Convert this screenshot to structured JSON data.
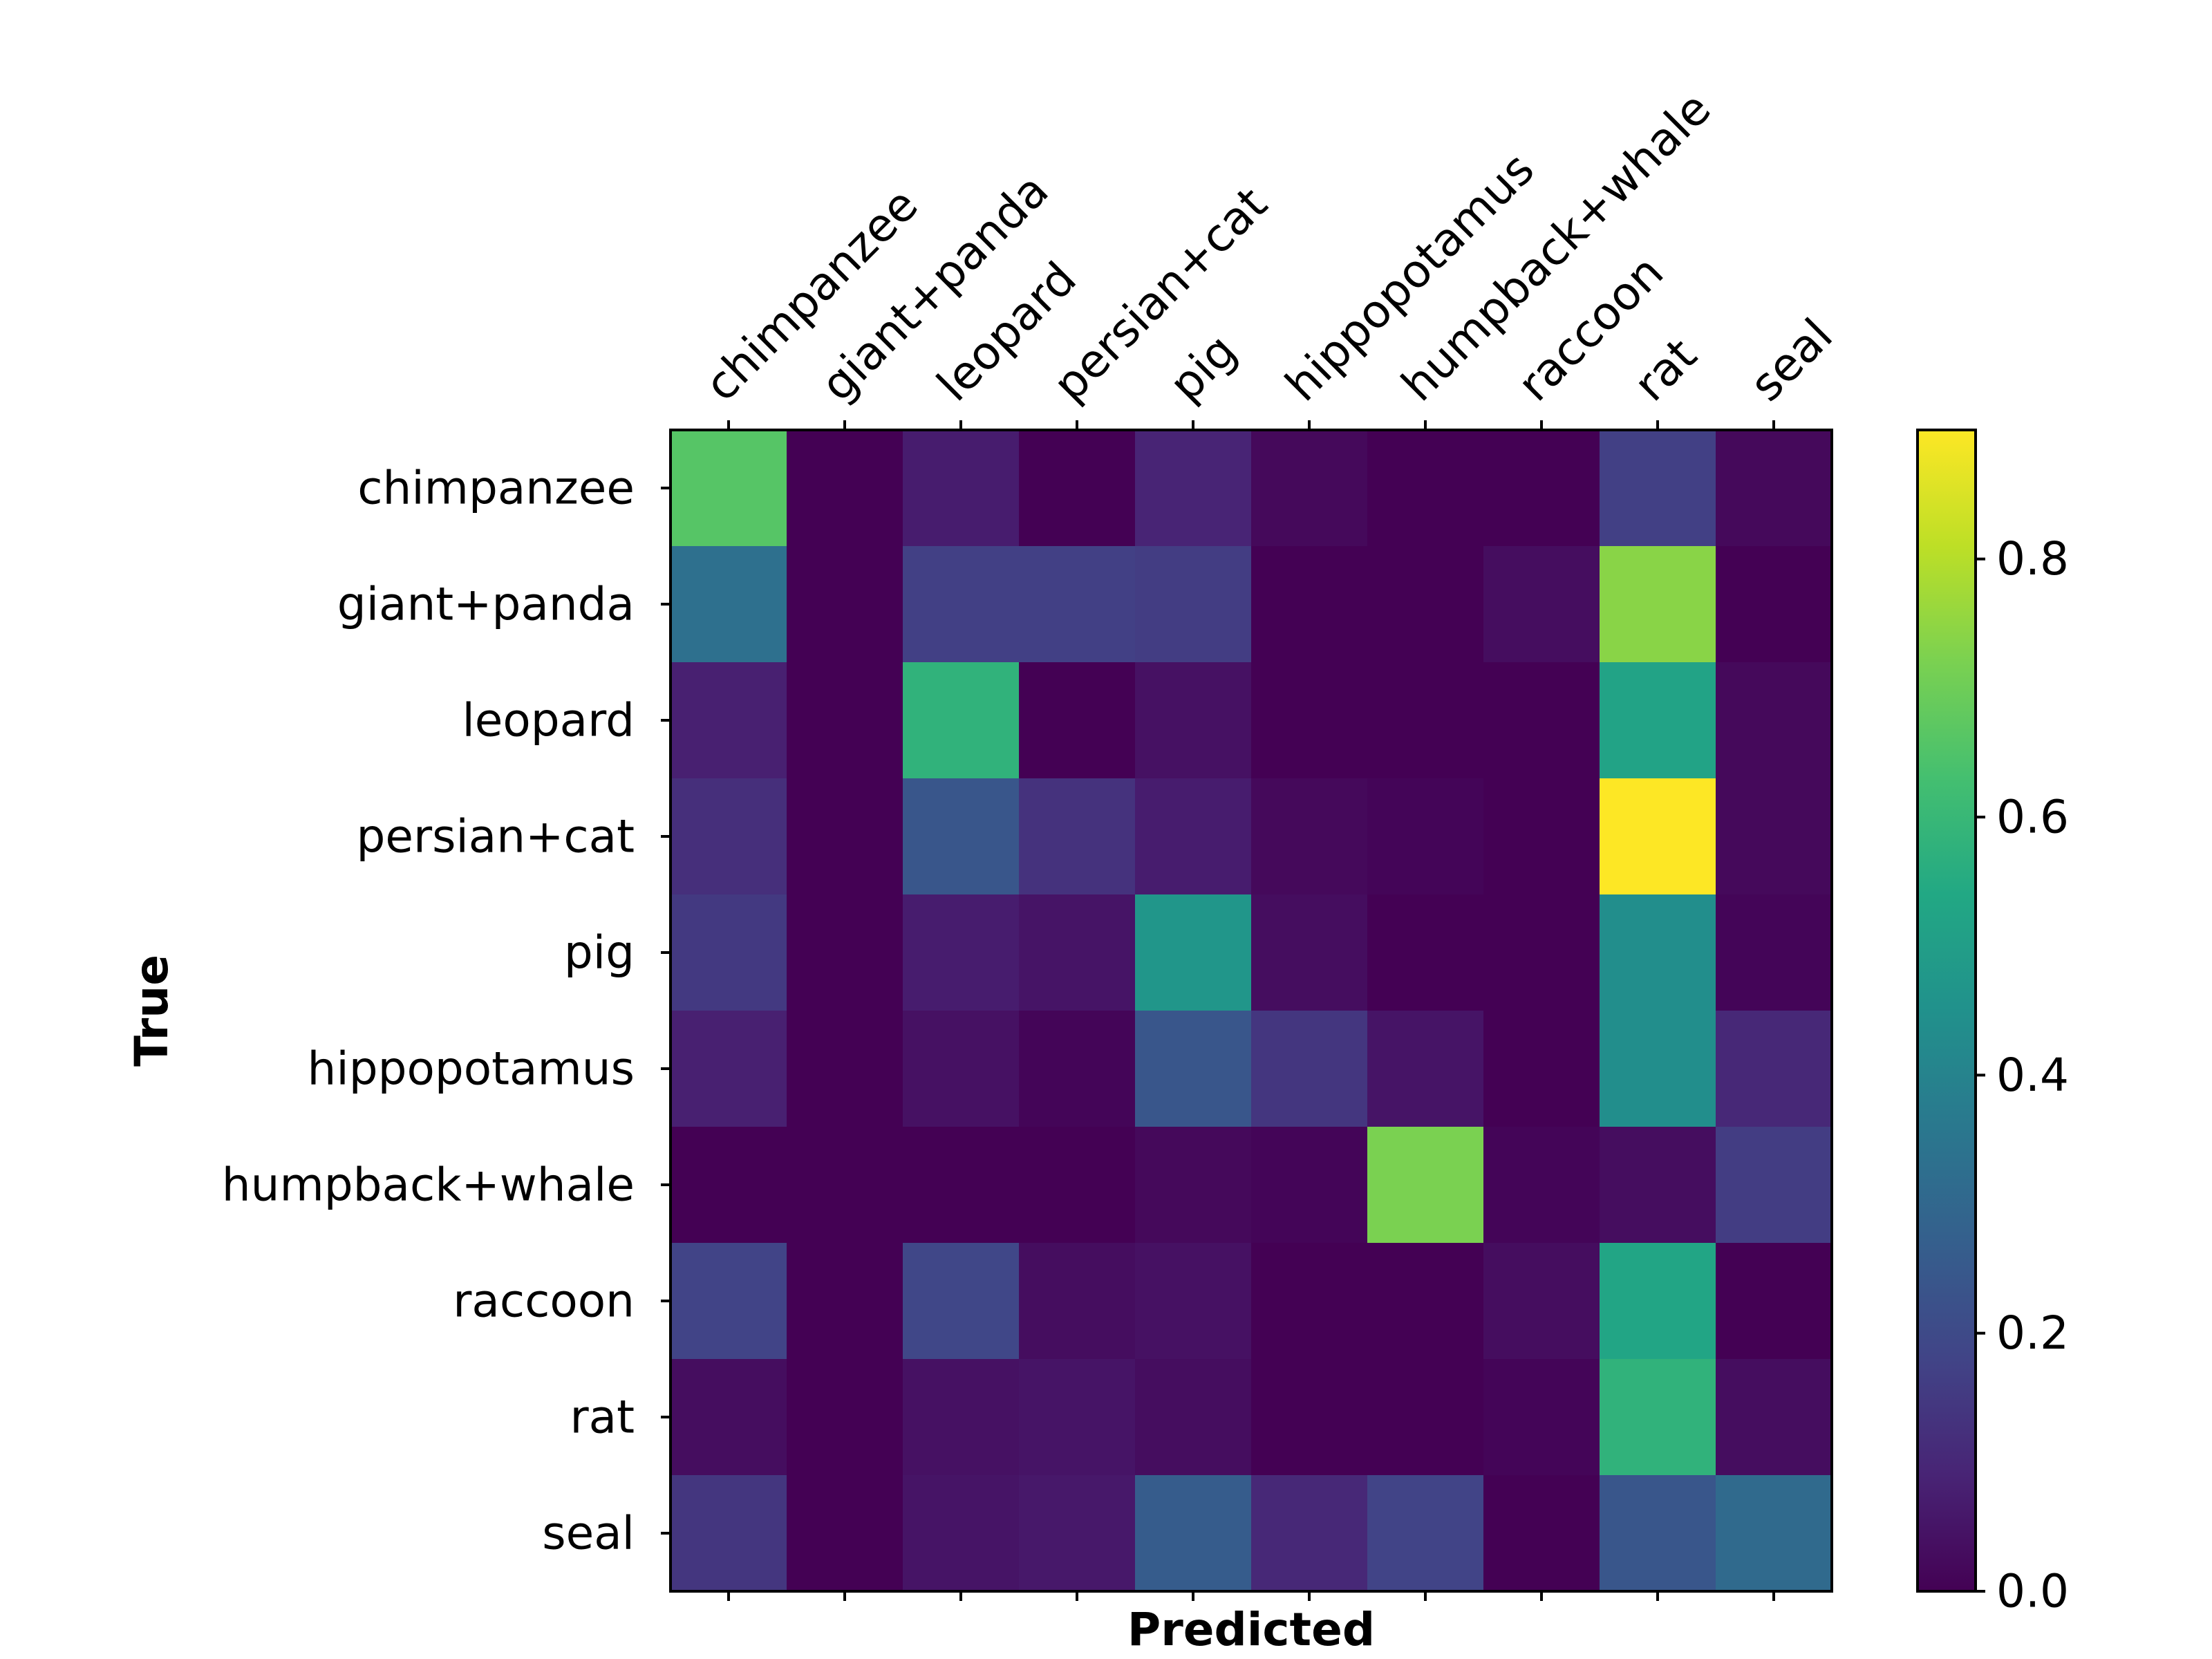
{
  "chart_data": {
    "type": "heatmap",
    "title": "",
    "xlabel": "Predicted",
    "ylabel": "True",
    "x_categories": [
      "chimpanzee",
      "giant+panda",
      "leopard",
      "persian+cat",
      "pig",
      "hippopotamus",
      "humpback+whale",
      "raccoon",
      "rat",
      "seal"
    ],
    "y_categories": [
      "chimpanzee",
      "giant+panda",
      "leopard",
      "persian+cat",
      "pig",
      "hippopotamus",
      "humpback+whale",
      "raccoon",
      "rat",
      "seal"
    ],
    "values": [
      [
        0.66,
        0.0,
        0.07,
        0.0,
        0.09,
        0.02,
        0.0,
        0.0,
        0.17,
        0.02
      ],
      [
        0.33,
        0.0,
        0.17,
        0.17,
        0.16,
        0.0,
        0.0,
        0.03,
        0.74,
        0.0
      ],
      [
        0.08,
        0.0,
        0.58,
        0.0,
        0.04,
        0.0,
        0.0,
        0.0,
        0.52,
        0.02
      ],
      [
        0.12,
        0.0,
        0.24,
        0.13,
        0.07,
        0.02,
        0.01,
        0.0,
        0.9,
        0.02
      ],
      [
        0.15,
        0.0,
        0.07,
        0.05,
        0.47,
        0.03,
        0.0,
        0.0,
        0.44,
        0.01
      ],
      [
        0.08,
        0.0,
        0.04,
        0.01,
        0.24,
        0.14,
        0.05,
        0.0,
        0.44,
        0.1
      ],
      [
        0.0,
        0.0,
        0.0,
        0.0,
        0.02,
        0.01,
        0.72,
        0.01,
        0.03,
        0.16
      ],
      [
        0.18,
        0.0,
        0.19,
        0.03,
        0.04,
        0.0,
        0.0,
        0.03,
        0.53,
        0.0
      ],
      [
        0.03,
        0.0,
        0.04,
        0.05,
        0.03,
        0.0,
        0.0,
        0.01,
        0.58,
        0.03
      ],
      [
        0.14,
        0.0,
        0.05,
        0.06,
        0.26,
        0.1,
        0.18,
        0.0,
        0.24,
        0.31
      ]
    ],
    "colorbar": {
      "vmin": 0.0,
      "vmax": 0.9,
      "ticks": [
        0.0,
        0.2,
        0.4,
        0.6,
        0.8
      ],
      "tick_labels": [
        "0.0",
        "0.2",
        "0.4",
        "0.6",
        "0.8"
      ],
      "colormap": "viridis"
    },
    "x_tick_position": "top"
  }
}
